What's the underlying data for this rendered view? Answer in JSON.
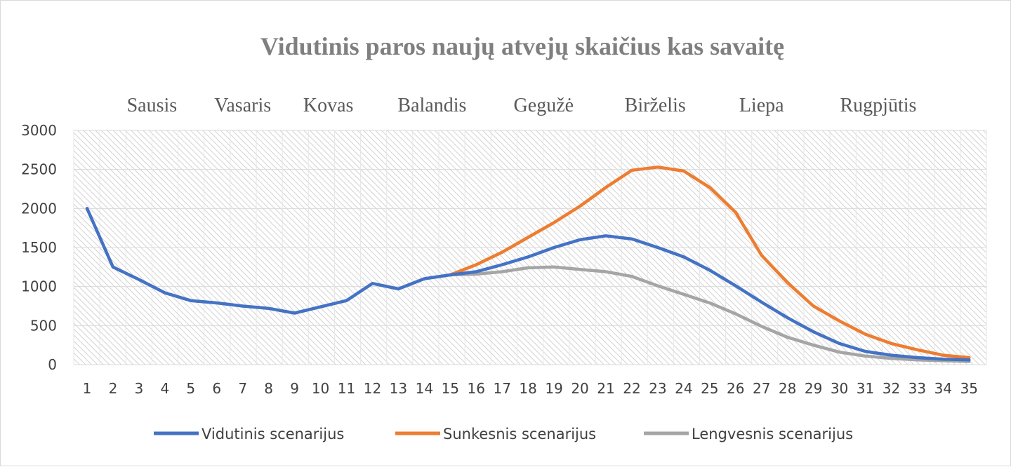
{
  "chart_data": {
    "type": "line",
    "title": "Vidutinis paros naujų atvejų skaičius kas savaitę",
    "month_labels": [
      {
        "label": "Sausis",
        "week": 3.5
      },
      {
        "label": "Vasaris",
        "week": 7
      },
      {
        "label": "Kovas",
        "week": 10.3
      },
      {
        "label": "Balandis",
        "week": 14.3
      },
      {
        "label": "Gegužė",
        "week": 18.6
      },
      {
        "label": "Birželis",
        "week": 22.9
      },
      {
        "label": "Liepa",
        "week": 27
      },
      {
        "label": "Rugpjūtis",
        "week": 31.5
      }
    ],
    "x": [
      1,
      2,
      3,
      4,
      5,
      6,
      7,
      8,
      9,
      10,
      11,
      12,
      13,
      14,
      15,
      16,
      17,
      18,
      19,
      20,
      21,
      22,
      23,
      24,
      25,
      26,
      27,
      28,
      29,
      30,
      31,
      32,
      33,
      34,
      35
    ],
    "ylim": [
      0,
      3000
    ],
    "yticks": [
      0,
      500,
      1000,
      1500,
      2000,
      2500,
      3000
    ],
    "grid": true,
    "legend_position": "bottom",
    "series": [
      {
        "name": "Vidutinis scenarijus",
        "color": "#4472c4",
        "x": [
          1,
          2,
          3,
          4,
          5,
          6,
          7,
          8,
          9,
          10,
          11,
          12,
          13,
          14,
          15,
          16,
          17,
          18,
          19,
          20,
          21,
          22,
          23,
          24,
          25,
          26,
          27,
          28,
          29,
          30,
          31,
          32,
          33,
          34,
          35
        ],
        "values": [
          2000,
          1250,
          1090,
          920,
          820,
          790,
          750,
          720,
          660,
          740,
          820,
          1040,
          970,
          1100,
          1150,
          1190,
          1280,
          1380,
          1500,
          1600,
          1650,
          1610,
          1500,
          1380,
          1210,
          1010,
          800,
          600,
          420,
          270,
          170,
          120,
          90,
          70,
          60
        ]
      },
      {
        "name": "Sunkesnis scenarijus",
        "color": "#ed7d31",
        "x": [
          15,
          16,
          17,
          18,
          19,
          20,
          21,
          22,
          23,
          24,
          25,
          26,
          27,
          28,
          29,
          30,
          31,
          32,
          33,
          34,
          35
        ],
        "values": [
          1150,
          1280,
          1440,
          1630,
          1820,
          2030,
          2270,
          2490,
          2530,
          2480,
          2270,
          1950,
          1400,
          1050,
          750,
          560,
          390,
          270,
          190,
          120,
          90
        ]
      },
      {
        "name": "Lengvesnis scenarijus",
        "color": "#a5a5a5",
        "x": [
          15,
          16,
          17,
          18,
          19,
          20,
          21,
          22,
          23,
          24,
          25,
          26,
          27,
          28,
          29,
          30,
          31,
          32,
          33,
          34,
          35
        ],
        "values": [
          1150,
          1160,
          1190,
          1240,
          1250,
          1220,
          1190,
          1130,
          1010,
          900,
          790,
          650,
          490,
          350,
          250,
          160,
          110,
          80,
          60,
          50,
          40
        ]
      }
    ]
  }
}
